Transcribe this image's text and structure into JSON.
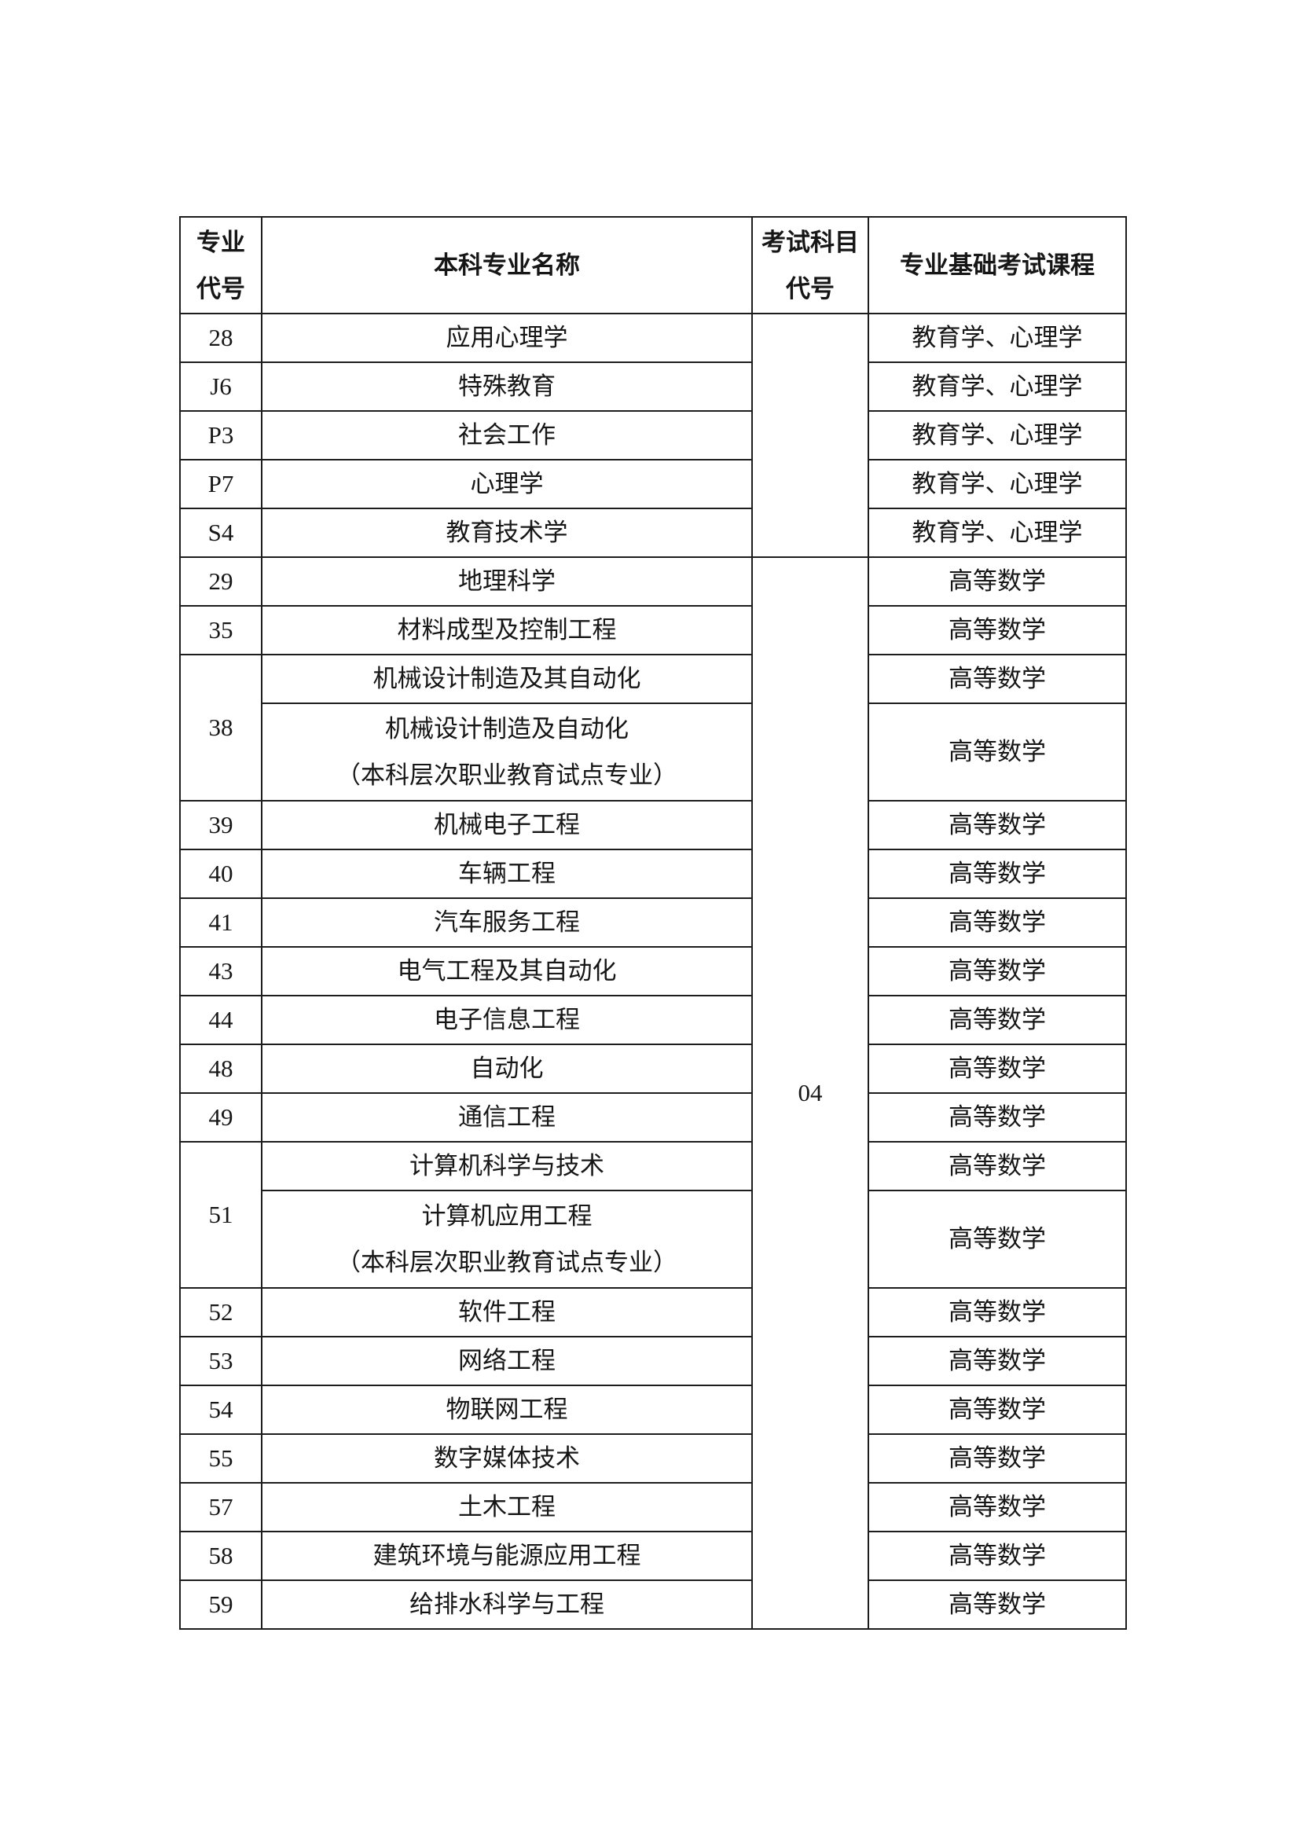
{
  "table": {
    "headers": {
      "col1": [
        "专业",
        "代号"
      ],
      "col2": "本科专业名称",
      "col3": [
        "考试科目",
        "代号"
      ],
      "col4": "专业基础考试课程"
    },
    "group1": {
      "exam_code": "",
      "rows": [
        {
          "code": "28",
          "major": "应用心理学",
          "course": "教育学、心理学"
        },
        {
          "code": "J6",
          "major": "特殊教育",
          "course": "教育学、心理学"
        },
        {
          "code": "P3",
          "major": "社会工作",
          "course": "教育学、心理学"
        },
        {
          "code": "P7",
          "major": "心理学",
          "course": "教育学、心理学"
        },
        {
          "code": "S4",
          "major": "教育技术学",
          "course": "教育学、心理学"
        }
      ]
    },
    "group2": {
      "exam_code": "04",
      "rows": [
        {
          "code": "29",
          "major": "地理科学",
          "course": "高等数学"
        },
        {
          "code": "35",
          "major": "材料成型及控制工程",
          "course": "高等数学"
        },
        {
          "code": "38",
          "major": "机械设计制造及其自动化",
          "course": "高等数学"
        },
        {
          "major_line1": "机械设计制造及自动化",
          "major_line2": "（本科层次职业教育试点专业）",
          "course": "高等数学"
        },
        {
          "code": "39",
          "major": "机械电子工程",
          "course": "高等数学"
        },
        {
          "code": "40",
          "major": "车辆工程",
          "course": "高等数学"
        },
        {
          "code": "41",
          "major": "汽车服务工程",
          "course": "高等数学"
        },
        {
          "code": "43",
          "major": "电气工程及其自动化",
          "course": "高等数学"
        },
        {
          "code": "44",
          "major": "电子信息工程",
          "course": "高等数学"
        },
        {
          "code": "48",
          "major": "自动化",
          "course": "高等数学"
        },
        {
          "code": "49",
          "major": "通信工程",
          "course": "高等数学"
        },
        {
          "code": "51",
          "major": "计算机科学与技术",
          "course": "高等数学"
        },
        {
          "major_line1": "计算机应用工程",
          "major_line2": "（本科层次职业教育试点专业）",
          "course": "高等数学"
        },
        {
          "code": "52",
          "major": "软件工程",
          "course": "高等数学"
        },
        {
          "code": "53",
          "major": "网络工程",
          "course": "高等数学"
        },
        {
          "code": "54",
          "major": "物联网工程",
          "course": "高等数学"
        },
        {
          "code": "55",
          "major": "数字媒体技术",
          "course": "高等数学"
        },
        {
          "code": "57",
          "major": "土木工程",
          "course": "高等数学"
        },
        {
          "code": "58",
          "major": "建筑环境与能源应用工程",
          "course": "高等数学"
        },
        {
          "code": "59",
          "major": "给排水科学与工程",
          "course": "高等数学"
        }
      ]
    }
  }
}
